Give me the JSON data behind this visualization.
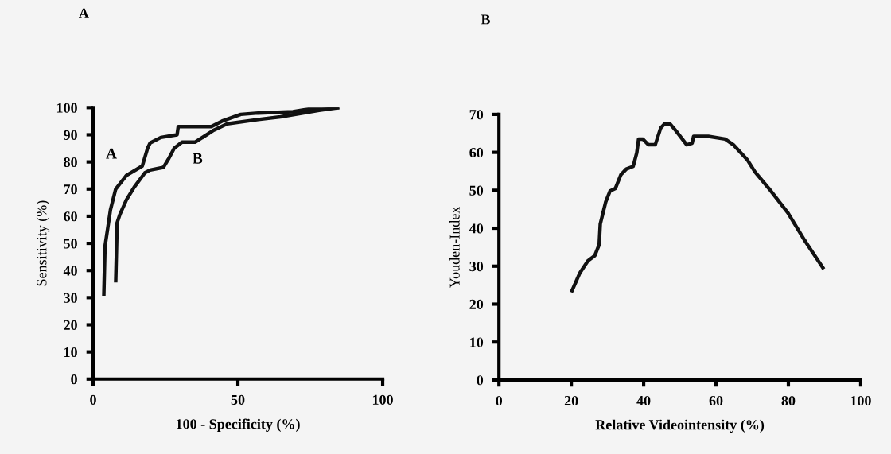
{
  "chart_data": [
    {
      "type": "line",
      "title": "A",
      "xlabel": "100 - Specificity (%)",
      "ylabel": "Sensitivity (%)",
      "xlim": [
        0,
        100
      ],
      "xticks": [
        0,
        50,
        100
      ],
      "ylim": [
        0,
        100
      ],
      "yticks": [
        0,
        10,
        20,
        30,
        40,
        50,
        60,
        70,
        80,
        90,
        100
      ],
      "grid": false,
      "marker": "none",
      "line_style": "solid",
      "series": [
        {
          "name": "A",
          "color": "#111111",
          "x": [
            3.7,
            4.1,
            6,
            7.8,
            11.5,
            17,
            18.8,
            19.7,
            23.4,
            29,
            29.4,
            40.8,
            44.5,
            51,
            57,
            69,
            77.5,
            85
          ],
          "values": [
            30.7,
            48.8,
            62.4,
            70,
            75,
            78.5,
            85,
            87,
            89,
            90,
            93,
            93,
            95,
            97.5,
            98,
            98.5,
            100,
            100
          ]
        },
        {
          "name": "B",
          "color": "#111111",
          "x": [
            7.8,
            8.3,
            9.2,
            11.5,
            14.2,
            17.9,
            19.7,
            24.3,
            26,
            28,
            30.7,
            35.3,
            41.7,
            46.3,
            57,
            64.7,
            78,
            85
          ],
          "values": [
            35.6,
            57.6,
            60.5,
            66,
            70.7,
            76,
            77,
            78,
            81,
            85,
            87.3,
            87.3,
            91.7,
            94,
            95.6,
            96.6,
            99,
            100
          ]
        }
      ]
    },
    {
      "type": "line",
      "title": "B",
      "xlabel": "Relative Videointensity (%)",
      "ylabel": "Youden-Index",
      "xlim": [
        0,
        100
      ],
      "xticks": [
        0,
        20,
        40,
        60,
        80,
        100
      ],
      "ylim": [
        0,
        70
      ],
      "yticks": [
        0,
        10,
        20,
        30,
        40,
        50,
        60,
        70
      ],
      "grid": false,
      "marker": "none",
      "line_style": "solid",
      "series": [
        {
          "color": "#111111",
          "x": [
            20,
            22.3,
            24.6,
            26.5,
            27.7,
            28,
            29.5,
            30.7,
            32.2,
            33.7,
            35.2,
            37.1,
            38.1,
            38.6,
            39.8,
            41.3,
            43.2,
            44.7,
            45.8,
            47.3,
            48.9,
            51.9,
            53.4,
            53.8,
            57.9,
            62.5,
            64.8,
            68.6,
            70.8,
            74.6,
            79.9,
            84.5,
            89.8
          ],
          "values": [
            23.1,
            28.1,
            31.4,
            32.8,
            35.7,
            41.1,
            46.9,
            49.8,
            50.5,
            54.1,
            55.6,
            56.3,
            59.9,
            63.5,
            63.5,
            62,
            62,
            66.4,
            67.5,
            67.5,
            65.7,
            62,
            62.4,
            64.2,
            64.2,
            63.5,
            62,
            58.1,
            54.8,
            50.5,
            44,
            36.8,
            29.2
          ]
        }
      ]
    }
  ]
}
